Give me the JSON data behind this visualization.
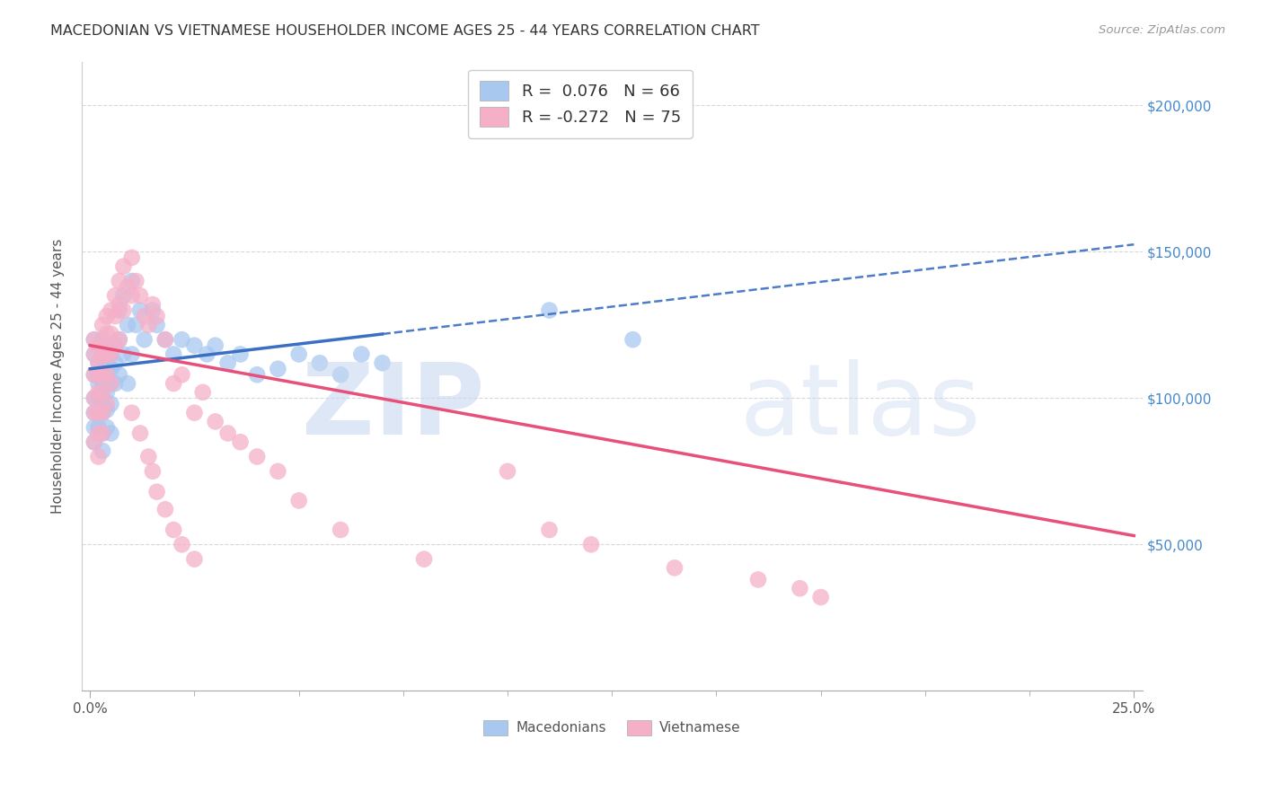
{
  "title": "MACEDONIAN VS VIETNAMESE HOUSEHOLDER INCOME AGES 25 - 44 YEARS CORRELATION CHART",
  "source": "Source: ZipAtlas.com",
  "ylabel": "Householder Income Ages 25 - 44 years",
  "xlabel_ticks": [
    0.0,
    0.025,
    0.05,
    0.075,
    0.1,
    0.125,
    0.15,
    0.175,
    0.2,
    0.225,
    0.25
  ],
  "xlabel_labels": [
    "0.0%",
    "",
    "",
    "",
    "",
    "",
    "",
    "",
    "",
    "",
    "25.0%"
  ],
  "ytick_vals": [
    0,
    50000,
    100000,
    150000,
    200000
  ],
  "ytick_labels_right": [
    "",
    "$50,000",
    "$100,000",
    "$150,000",
    "$200,000"
  ],
  "xlim": [
    -0.002,
    0.252
  ],
  "ylim": [
    20000,
    215000
  ],
  "legend_blue_label": "R =  0.076   N = 66",
  "legend_pink_label": "R = -0.272   N = 75",
  "legend_macedonians": "Macedonians",
  "legend_vietnamese": "Vietnamese",
  "blue_color": "#a8c8f0",
  "pink_color": "#f5b0c8",
  "blue_line_color": "#3a6fc4",
  "pink_line_color": "#e8507a",
  "watermark_zip_color": "#c8d8f0",
  "watermark_atlas_color": "#c8d8f0",
  "grid_color": "#d8d8d8",
  "blue_intercept": 110000,
  "blue_slope": 170000,
  "pink_intercept": 118000,
  "pink_slope": -260000,
  "mac_x": [
    0.001,
    0.001,
    0.001,
    0.001,
    0.001,
    0.001,
    0.001,
    0.002,
    0.002,
    0.002,
    0.002,
    0.002,
    0.002,
    0.003,
    0.003,
    0.003,
    0.003,
    0.003,
    0.003,
    0.003,
    0.003,
    0.004,
    0.004,
    0.004,
    0.004,
    0.004,
    0.004,
    0.005,
    0.005,
    0.005,
    0.005,
    0.005,
    0.006,
    0.006,
    0.006,
    0.007,
    0.007,
    0.007,
    0.008,
    0.008,
    0.009,
    0.009,
    0.01,
    0.01,
    0.011,
    0.012,
    0.013,
    0.015,
    0.016,
    0.018,
    0.02,
    0.022,
    0.025,
    0.028,
    0.03,
    0.033,
    0.036,
    0.04,
    0.045,
    0.05,
    0.055,
    0.06,
    0.065,
    0.07,
    0.11,
    0.13
  ],
  "mac_y": [
    108000,
    115000,
    120000,
    100000,
    95000,
    90000,
    85000,
    112000,
    108000,
    105000,
    100000,
    95000,
    90000,
    120000,
    115000,
    110000,
    105000,
    100000,
    95000,
    88000,
    82000,
    118000,
    112000,
    108000,
    102000,
    96000,
    90000,
    115000,
    110000,
    105000,
    98000,
    88000,
    118000,
    112000,
    105000,
    130000,
    120000,
    108000,
    135000,
    115000,
    125000,
    105000,
    140000,
    115000,
    125000,
    130000,
    120000,
    130000,
    125000,
    120000,
    115000,
    120000,
    118000,
    115000,
    118000,
    112000,
    115000,
    108000,
    110000,
    115000,
    112000,
    108000,
    115000,
    112000,
    130000,
    120000
  ],
  "viet_x": [
    0.001,
    0.001,
    0.001,
    0.001,
    0.001,
    0.001,
    0.002,
    0.002,
    0.002,
    0.002,
    0.002,
    0.002,
    0.002,
    0.003,
    0.003,
    0.003,
    0.003,
    0.003,
    0.003,
    0.003,
    0.004,
    0.004,
    0.004,
    0.004,
    0.004,
    0.005,
    0.005,
    0.005,
    0.005,
    0.006,
    0.006,
    0.006,
    0.007,
    0.007,
    0.007,
    0.008,
    0.008,
    0.009,
    0.01,
    0.01,
    0.011,
    0.012,
    0.013,
    0.014,
    0.015,
    0.016,
    0.018,
    0.02,
    0.022,
    0.025,
    0.027,
    0.03,
    0.033,
    0.036,
    0.04,
    0.045,
    0.05,
    0.06,
    0.08,
    0.1,
    0.11,
    0.12,
    0.14,
    0.16,
    0.17,
    0.175,
    0.01,
    0.012,
    0.014,
    0.015,
    0.016,
    0.018,
    0.02,
    0.022,
    0.025
  ],
  "viet_y": [
    108000,
    115000,
    120000,
    100000,
    95000,
    85000,
    118000,
    112000,
    108000,
    102000,
    95000,
    88000,
    80000,
    125000,
    118000,
    115000,
    108000,
    102000,
    95000,
    88000,
    128000,
    122000,
    115000,
    108000,
    98000,
    130000,
    122000,
    115000,
    105000,
    135000,
    128000,
    118000,
    140000,
    132000,
    120000,
    145000,
    130000,
    138000,
    148000,
    135000,
    140000,
    135000,
    128000,
    125000,
    132000,
    128000,
    120000,
    105000,
    108000,
    95000,
    102000,
    92000,
    88000,
    85000,
    80000,
    75000,
    65000,
    55000,
    45000,
    75000,
    55000,
    50000,
    42000,
    38000,
    35000,
    32000,
    95000,
    88000,
    80000,
    75000,
    68000,
    62000,
    55000,
    50000,
    45000
  ]
}
